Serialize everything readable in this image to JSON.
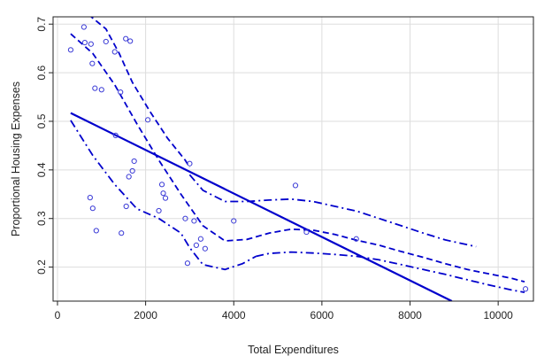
{
  "chart_data": {
    "type": "scatter",
    "title": "",
    "xlabel": "Total Expenditures",
    "ylabel": "Proportional Housing Expenses",
    "xlim": [
      -100,
      10800
    ],
    "ylim": [
      0.13,
      0.715
    ],
    "x_ticks": [
      0,
      2000,
      4000,
      6000,
      8000,
      10000
    ],
    "y_ticks": [
      0.2,
      0.3,
      0.4,
      0.5,
      0.6,
      0.7
    ],
    "x_tick_labels": [
      "0",
      "2000",
      "4000",
      "6000",
      "8000",
      "10000"
    ],
    "y_tick_labels": [
      "0.2",
      "0.3",
      "0.4",
      "0.5",
      "0.6",
      "0.7"
    ],
    "grid": true,
    "colors": {
      "points": "#3a3ad6",
      "lines": "#0000cc",
      "grid": "#dddddd",
      "axis": "#222222"
    },
    "points": {
      "x": [
        300,
        600,
        620,
        740,
        760,
        790,
        800,
        850,
        880,
        1000,
        1100,
        1300,
        1320,
        1430,
        1450,
        1550,
        1560,
        1620,
        1650,
        1700,
        1740,
        2050,
        2300,
        2370,
        2400,
        2450,
        2900,
        2950,
        3000,
        3100,
        3150,
        3250,
        3350,
        4000,
        5400,
        5650,
        6780,
        10620
      ],
      "y": [
        0.647,
        0.694,
        0.662,
        0.343,
        0.659,
        0.619,
        0.321,
        0.568,
        0.275,
        0.565,
        0.664,
        0.643,
        0.471,
        0.56,
        0.27,
        0.67,
        0.325,
        0.386,
        0.665,
        0.398,
        0.418,
        0.503,
        0.316,
        0.37,
        0.352,
        0.342,
        0.3,
        0.208,
        0.413,
        0.295,
        0.245,
        0.258,
        0.238,
        0.295,
        0.368,
        0.272,
        0.258,
        0.155
      ]
    },
    "series": [
      {
        "style": "solid",
        "x": [
          300,
          8950
        ],
        "y": [
          0.517,
          0.13
        ]
      },
      {
        "style": "dashed",
        "x": [
          300,
          800,
          1300,
          1800,
          2300,
          2800,
          3300,
          3800,
          4300,
          4800,
          5300,
          5800,
          6300,
          6800,
          7300,
          7800,
          8300,
          8800,
          9300,
          9800,
          10300,
          10600
        ],
        "y": [
          0.68,
          0.64,
          0.575,
          0.495,
          0.42,
          0.35,
          0.285,
          0.254,
          0.257,
          0.27,
          0.278,
          0.276,
          0.267,
          0.255,
          0.245,
          0.232,
          0.22,
          0.207,
          0.195,
          0.186,
          0.177,
          0.17
        ]
      },
      {
        "style": "dashed",
        "x": [
          700,
          1100,
          1400,
          1700,
          2100,
          2500,
          2900,
          3000
        ],
        "y": [
          0.72,
          0.69,
          0.64,
          0.58,
          0.52,
          0.465,
          0.42,
          0.405
        ]
      },
      {
        "style": "dashdot",
        "x": [
          300,
          800,
          1300,
          1800,
          2300,
          2800,
          3000,
          3300,
          3800,
          4200,
          4500
        ],
        "y": [
          0.502,
          0.43,
          0.37,
          0.32,
          0.3,
          0.27,
          0.24,
          0.205,
          0.195,
          0.207,
          0.222
        ]
      },
      {
        "style": "dashdot",
        "x": [
          3000,
          3300,
          3800,
          4300,
          4800,
          5300,
          5800,
          6300,
          6800,
          7300,
          7800,
          8300,
          8800,
          9300,
          9500
        ],
        "y": [
          0.39,
          0.358,
          0.335,
          0.335,
          0.338,
          0.34,
          0.335,
          0.325,
          0.315,
          0.3,
          0.285,
          0.27,
          0.256,
          0.246,
          0.242
        ]
      },
      {
        "style": "dashdot",
        "x": [
          4500,
          4800,
          5300,
          5800,
          6300,
          6800,
          7300,
          7800,
          8300,
          8800,
          9300,
          9800,
          10300,
          10600
        ],
        "y": [
          0.222,
          0.228,
          0.231,
          0.229,
          0.226,
          0.222,
          0.215,
          0.205,
          0.195,
          0.185,
          0.174,
          0.163,
          0.153,
          0.148
        ]
      }
    ]
  }
}
